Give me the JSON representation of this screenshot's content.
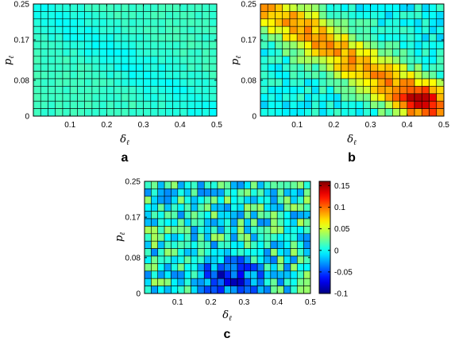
{
  "figure": {
    "panels": [
      {
        "id": "a",
        "label": "a"
      },
      {
        "id": "b",
        "label": "b"
      },
      {
        "id": "c",
        "label": "c"
      }
    ]
  },
  "chart_data": [
    {
      "type": "heatmap",
      "panel": "a",
      "xlabel_base": "δ",
      "xlabel_sub": "ℓ",
      "ylabel_base": "p",
      "ylabel_sub": "ℓ",
      "xlim": [
        0,
        0.5
      ],
      "ylim": [
        0,
        0.25
      ],
      "xticks": [
        "0.1",
        "0.2",
        "0.3",
        "0.4",
        "0.5"
      ],
      "yticks": [
        "0",
        "0.08",
        "0.17",
        "0.25"
      ],
      "grid": {
        "cols": 25,
        "rows": 15
      },
      "value_range": [
        -0.1,
        0.16
      ],
      "values_description": "nearly uniform field around -0.005 to 0.02, slightly lower along a diagonal band from top-left to bottom-right"
    },
    {
      "type": "heatmap",
      "panel": "b",
      "xlabel_base": "δ",
      "xlabel_sub": "ℓ",
      "ylabel_base": "p",
      "ylabel_sub": "ℓ",
      "xlim": [
        0,
        0.5
      ],
      "ylim": [
        0,
        0.25
      ],
      "xticks": [
        "0.1",
        "0.2",
        "0.3",
        "0.4",
        "0.5"
      ],
      "yticks": [
        "0",
        "0.08",
        "0.17",
        "0.25"
      ],
      "grid": {
        "cols": 25,
        "rows": 15
      },
      "value_range": [
        -0.1,
        0.16
      ],
      "values_description": "diagonal band of high values (~0.07-0.10) from top-left to lower-right, peaking ~0.14 near δ≈0.45, p≈0.02; low (~0.0) near bottom-left and top-right corners"
    },
    {
      "type": "heatmap",
      "panel": "c",
      "xlabel_base": "δ",
      "xlabel_sub": "ℓ",
      "ylabel_base": "p",
      "ylabel_sub": "ℓ",
      "xlim": [
        0,
        0.5
      ],
      "ylim": [
        0,
        0.25
      ],
      "xticks": [
        "0.1",
        "0.2",
        "0.3",
        "0.4",
        "0.5"
      ],
      "yticks": [
        "0",
        "0.08",
        "0.17",
        "0.25"
      ],
      "grid": {
        "cols": 25,
        "rows": 15
      },
      "value_range": [
        -0.1,
        0.16
      ],
      "values_description": "noisy field mostly -0.05 to 0.05; lowest (~-0.09) cluster near δ≈0.2-0.3, p≈0.02",
      "colorbar": {
        "ticks": [
          "0.15",
          "0.1",
          "0.05",
          "0",
          "-0.05",
          "-0.1"
        ],
        "tick_values": [
          0.15,
          0.1,
          0.05,
          0,
          -0.05,
          -0.1
        ],
        "range": [
          -0.1,
          0.16
        ],
        "colormap": "jet"
      }
    }
  ]
}
